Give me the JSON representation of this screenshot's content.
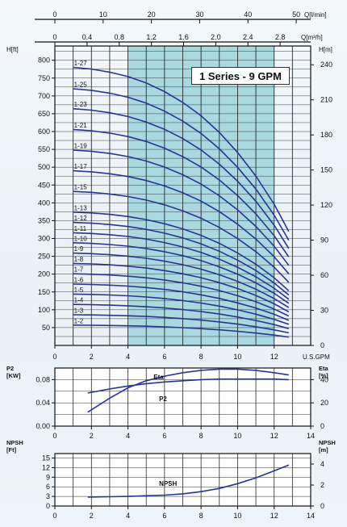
{
  "title": "1 Series - 9 GPM",
  "colors": {
    "curve": "#283593",
    "band": "#a9d9df",
    "axis": "#111111",
    "grid": "#2a2a2a"
  },
  "chart_data": [
    {
      "type": "line",
      "title": "1 Series - 9 GPM",
      "xlabel": "U.S.GPM",
      "ylabel": "H[ft]",
      "ylabel_right": "H[m]",
      "top_axis_1_label": "Q[l/min]",
      "top_axis_1_ticks": [
        "0",
        "10",
        "20",
        "30",
        "40",
        "50"
      ],
      "top_axis_2_label": "Q[m³/h]",
      "top_axis_2_ticks": [
        "0",
        "0.4",
        "0.8",
        "1.2",
        "1.6",
        "2.0",
        "2.4",
        "2.8"
      ],
      "x_ticks": [
        "0",
        "2",
        "4",
        "6",
        "8",
        "10",
        "12"
      ],
      "y_ticks": [
        "50",
        "100",
        "150",
        "200",
        "250",
        "300",
        "350",
        "400",
        "450",
        "500",
        "550",
        "600",
        "650",
        "700",
        "750",
        "800"
      ],
      "y_right_ticks": [
        "0",
        "30",
        "60",
        "90",
        "120",
        "150",
        "180",
        "210",
        "240"
      ],
      "xlim": [
        0,
        14
      ],
      "ylim": [
        0,
        840
      ],
      "recommended_range_gpm": [
        4,
        12
      ],
      "grid": true,
      "x": [
        1,
        2,
        3,
        4,
        5,
        6,
        7,
        8,
        9,
        10,
        11,
        12,
        12.8
      ],
      "shape": [
        1,
        0.994,
        0.983,
        0.967,
        0.944,
        0.913,
        0.874,
        0.826,
        0.766,
        0.694,
        0.609,
        0.508,
        0.41
      ],
      "series": [
        {
          "name": "1-27",
          "shut_off_ft": 780
        },
        {
          "name": "1-25",
          "shut_off_ft": 720
        },
        {
          "name": "1-23",
          "shut_off_ft": 664
        },
        {
          "name": "1-21",
          "shut_off_ft": 606
        },
        {
          "name": "1-19",
          "shut_off_ft": 548
        },
        {
          "name": "1-17",
          "shut_off_ft": 490
        },
        {
          "name": "1-15",
          "shut_off_ft": 432
        },
        {
          "name": "1-13",
          "shut_off_ft": 374
        },
        {
          "name": "1-12",
          "shut_off_ft": 345
        },
        {
          "name": "1-11",
          "shut_off_ft": 316
        },
        {
          "name": "1-10",
          "shut_off_ft": 288
        },
        {
          "name": "1-9",
          "shut_off_ft": 259
        },
        {
          "name": "1-8",
          "shut_off_ft": 230
        },
        {
          "name": "1-7",
          "shut_off_ft": 201
        },
        {
          "name": "1-6",
          "shut_off_ft": 172
        },
        {
          "name": "1-5",
          "shut_off_ft": 144
        },
        {
          "name": "1-4",
          "shut_off_ft": 115
        },
        {
          "name": "1-3",
          "shut_off_ft": 86
        },
        {
          "name": "1-2",
          "shut_off_ft": 57
        }
      ]
    },
    {
      "type": "line",
      "ylabel": "P2\n[KW]",
      "ylabel_right": "Eta\n[%]",
      "y_ticks": [
        "0.00",
        "0.04",
        "0.08"
      ],
      "y_right_ticks": [
        "0",
        "20",
        "40"
      ],
      "x_ticks": [
        "0",
        "2",
        "4",
        "6",
        "8",
        "10",
        "12",
        "14"
      ],
      "xlim": [
        0,
        14
      ],
      "ylim": [
        0,
        0.1
      ],
      "grid": true,
      "series": [
        {
          "name": "Eta",
          "axis": "right",
          "x": [
            1.8,
            3,
            4,
            5,
            6,
            7,
            8,
            9,
            10,
            11,
            12,
            12.8
          ],
          "y": [
            12,
            24,
            33,
            39,
            43,
            46,
            48,
            49,
            49,
            48,
            46,
            44
          ]
        },
        {
          "name": "P2",
          "axis": "left",
          "x": [
            1.8,
            3,
            4,
            5,
            6,
            7,
            8,
            9,
            10,
            11,
            12,
            12.8
          ],
          "y": [
            0.057,
            0.064,
            0.069,
            0.073,
            0.076,
            0.078,
            0.08,
            0.081,
            0.081,
            0.081,
            0.081,
            0.08
          ]
        }
      ]
    },
    {
      "type": "line",
      "ylabel": "NPSH\n[Ft]",
      "ylabel_right": "NPSH\n[m]",
      "y_ticks": [
        "0",
        "3",
        "6",
        "9",
        "12",
        "15"
      ],
      "y_right_ticks": [
        "0",
        "2",
        "4"
      ],
      "x_ticks": [
        "0",
        "2",
        "4",
        "6",
        "8",
        "10",
        "12",
        "14"
      ],
      "xlim": [
        0,
        14
      ],
      "ylim": [
        0,
        16.4
      ],
      "grid": true,
      "series": [
        {
          "name": "NPSH",
          "x": [
            1.8,
            3,
            4,
            5,
            6,
            7,
            8,
            9,
            10,
            11,
            12,
            12.8
          ],
          "y": [
            2.8,
            2.9,
            3,
            3.2,
            3.4,
            3.8,
            4.5,
            5.5,
            7,
            8.8,
            11,
            12.8
          ]
        }
      ]
    }
  ]
}
